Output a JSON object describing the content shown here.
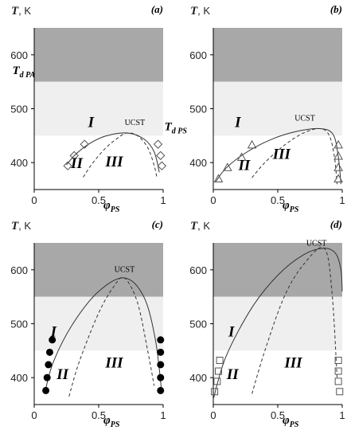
{
  "chart_data": [
    {
      "type": "line",
      "panel_label": "(a)",
      "ylabel": {
        "symbol": "T",
        "unit": ", K"
      },
      "xlabel": {
        "symbol": "φ",
        "sub": "PS"
      },
      "xlim": [
        0,
        1
      ],
      "ylim": [
        350,
        650
      ],
      "xticks": [
        0,
        0.5,
        1
      ],
      "yticks": [
        400,
        500,
        600
      ],
      "bands": [
        {
          "from": 550,
          "to": 650,
          "color": "#a8a8a8"
        },
        {
          "from": 450,
          "to": 550,
          "color": "#efefef"
        }
      ],
      "series": [
        {
          "style": "solid",
          "color": "#333333",
          "x": [
            0.25,
            0.32,
            0.42,
            0.55,
            0.72,
            0.85,
            0.93,
            0.97
          ],
          "values": [
            396,
            415,
            434,
            449,
            455,
            444,
            420,
            382
          ]
        },
        {
          "style": "dashed",
          "color": "#333333",
          "x": [
            0.38,
            0.45,
            0.55,
            0.65,
            0.72,
            0.8,
            0.88,
            0.93,
            0.95
          ],
          "values": [
            373,
            398,
            426,
            446,
            455,
            450,
            428,
            395,
            374
          ]
        },
        {
          "style": "marker",
          "marker": "diamond",
          "color": "#555555",
          "x": [
            0.26,
            0.31,
            0.39,
            0.96,
            0.98,
            0.99
          ],
          "values": [
            394,
            413,
            434,
            434,
            413,
            394
          ]
        }
      ],
      "annotations": [
        {
          "text": "I",
          "kind": "roman",
          "x": 0.44,
          "y": 466
        },
        {
          "text": "II",
          "kind": "roman",
          "x": 0.33,
          "y": 390
        },
        {
          "text": "III",
          "kind": "roman",
          "x": 0.62,
          "y": 393
        },
        {
          "text": "UCST",
          "kind": "ucst",
          "x": 0.78,
          "y": 470
        },
        {
          "text": "T",
          "sub": "d PA",
          "kind": "sym",
          "x": -0.17,
          "y": 564
        },
        {
          "text": "T",
          "sub": "d PS",
          "kind": "sym",
          "x": 1.01,
          "y": 460
        }
      ]
    },
    {
      "type": "line",
      "panel_label": "(b)",
      "ylabel": {
        "symbol": "T",
        "unit": ", K"
      },
      "xlabel": {
        "symbol": "φ",
        "sub": "PS"
      },
      "xlim": [
        0,
        1
      ],
      "ylim": [
        350,
        650
      ],
      "xticks": [
        0,
        0.5,
        1
      ],
      "yticks": [
        400,
        500,
        600
      ],
      "bands": [
        {
          "from": 550,
          "to": 650,
          "color": "#a8a8a8"
        },
        {
          "from": 450,
          "to": 550,
          "color": "#efefef"
        }
      ],
      "series": [
        {
          "style": "solid",
          "color": "#333333",
          "x": [
            0.02,
            0.1,
            0.25,
            0.45,
            0.65,
            0.83,
            0.93,
            0.97,
            0.99
          ],
          "values": [
            365,
            390,
            418,
            443,
            458,
            463,
            452,
            410,
            360
          ]
        },
        {
          "style": "dashed",
          "color": "#333333",
          "x": [
            0.3,
            0.4,
            0.55,
            0.7,
            0.83,
            0.9,
            0.94,
            0.96
          ],
          "values": [
            372,
            400,
            432,
            455,
            463,
            450,
            410,
            360
          ]
        },
        {
          "style": "marker",
          "marker": "triangle",
          "color": "#555555",
          "x": [
            0.04,
            0.11,
            0.22,
            0.3,
            0.97,
            0.97,
            0.97,
            0.97
          ],
          "values": [
            370,
            391,
            410,
            433,
            433,
            412,
            391,
            370
          ]
        }
      ],
      "annotations": [
        {
          "text": "I",
          "kind": "roman",
          "x": 0.19,
          "y": 466
        },
        {
          "text": "II",
          "kind": "roman",
          "x": 0.24,
          "y": 386
        },
        {
          "text": "III",
          "kind": "roman",
          "x": 0.53,
          "y": 407
        },
        {
          "text": "UCST",
          "kind": "ucst",
          "x": 0.71,
          "y": 478
        }
      ]
    },
    {
      "type": "line",
      "panel_label": "(c)",
      "ylabel": {
        "symbol": "T",
        "unit": ", K"
      },
      "xlabel": {
        "symbol": "φ",
        "sub": "PS"
      },
      "xlim": [
        0,
        1
      ],
      "ylim": [
        350,
        650
      ],
      "xticks": [
        0,
        0.5,
        1
      ],
      "yticks": [
        400,
        500,
        600
      ],
      "bands": [
        {
          "from": 550,
          "to": 650,
          "color": "#a8a8a8"
        },
        {
          "from": 450,
          "to": 550,
          "color": "#efefef"
        }
      ],
      "series": [
        {
          "style": "solid",
          "color": "#333333",
          "x": [
            0.08,
            0.15,
            0.3,
            0.5,
            0.7,
            0.85,
            0.94,
            0.99
          ],
          "values": [
            370,
            430,
            500,
            560,
            585,
            550,
            470,
            370
          ]
        },
        {
          "style": "dashed",
          "color": "#333333",
          "x": [
            0.27,
            0.35,
            0.5,
            0.62,
            0.7,
            0.8,
            0.88,
            0.93
          ],
          "values": [
            365,
            430,
            520,
            570,
            585,
            540,
            450,
            385
          ]
        },
        {
          "style": "marker",
          "marker": "circle",
          "filled": true,
          "color": "#000000",
          "x": [
            0.14,
            0.12,
            0.11,
            0.1,
            0.09,
            0.98,
            0.98,
            0.98,
            0.98,
            0.98
          ],
          "values": [
            470,
            447,
            424,
            400,
            376,
            470,
            447,
            424,
            400,
            376
          ]
        }
      ],
      "annotations": [
        {
          "text": "I",
          "kind": "roman",
          "x": 0.15,
          "y": 476
        },
        {
          "text": "II",
          "kind": "roman",
          "x": 0.22,
          "y": 397
        },
        {
          "text": "III",
          "kind": "roman",
          "x": 0.62,
          "y": 419
        },
        {
          "text": "UCST",
          "kind": "ucst",
          "x": 0.7,
          "y": 596
        }
      ]
    },
    {
      "type": "line",
      "panel_label": "(d)",
      "ylabel": {
        "symbol": "T",
        "unit": ", K"
      },
      "xlabel": {
        "symbol": "φ",
        "sub": "PS"
      },
      "xlim": [
        0,
        1
      ],
      "ylim": [
        350,
        650
      ],
      "xticks": [
        0,
        0.5,
        1
      ],
      "yticks": [
        400,
        500,
        600
      ],
      "bands": [
        {
          "from": 550,
          "to": 650,
          "color": "#a8a8a8"
        },
        {
          "from": 450,
          "to": 550,
          "color": "#efefef"
        }
      ],
      "series": [
        {
          "style": "solid",
          "color": "#333333",
          "x": [
            0.0,
            0.1,
            0.3,
            0.5,
            0.7,
            0.86,
            0.95,
            0.99,
            1.0
          ],
          "values": [
            360,
            440,
            530,
            590,
            628,
            640,
            630,
            600,
            560
          ]
        },
        {
          "style": "dashed",
          "color": "#333333",
          "x": [
            0.3,
            0.4,
            0.55,
            0.7,
            0.86,
            0.92,
            0.96
          ],
          "values": [
            370,
            450,
            550,
            610,
            640,
            560,
            400
          ]
        },
        {
          "style": "marker",
          "marker": "square",
          "color": "#555555",
          "x": [
            0.01,
            0.03,
            0.04,
            0.05,
            0.97,
            0.97,
            0.97,
            0.98
          ],
          "values": [
            374,
            393,
            412,
            432,
            432,
            412,
            393,
            374
          ]
        }
      ],
      "annotations": [
        {
          "text": "I",
          "kind": "roman",
          "x": 0.14,
          "y": 476
        },
        {
          "text": "II",
          "kind": "roman",
          "x": 0.15,
          "y": 397
        },
        {
          "text": "III",
          "kind": "roman",
          "x": 0.62,
          "y": 419
        },
        {
          "text": "UCST",
          "kind": "ucst",
          "x": 0.8,
          "y": 645
        }
      ]
    }
  ]
}
